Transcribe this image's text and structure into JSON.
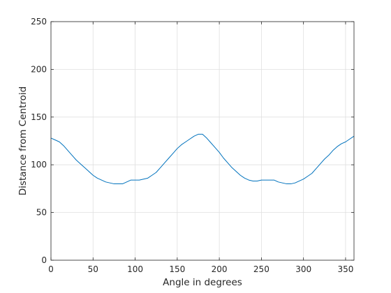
{
  "chart_data": {
    "type": "line",
    "title": "",
    "xlabel": "Angle in degrees",
    "ylabel": "Distance from Centroid",
    "xlim": [
      0,
      360
    ],
    "ylim": [
      0,
      250
    ],
    "xticks": [
      0,
      50,
      100,
      150,
      200,
      250,
      300,
      350
    ],
    "yticks": [
      0,
      50,
      100,
      150,
      200,
      250
    ],
    "grid": true,
    "legend": "none",
    "series": [
      {
        "color": "#0072BD",
        "x": [
          0,
          5,
          10,
          15,
          20,
          25,
          30,
          35,
          40,
          45,
          50,
          55,
          60,
          65,
          70,
          75,
          80,
          85,
          90,
          95,
          100,
          105,
          110,
          115,
          120,
          125,
          130,
          135,
          140,
          145,
          150,
          155,
          160,
          165,
          170,
          175,
          180,
          185,
          190,
          195,
          200,
          205,
          210,
          215,
          220,
          225,
          230,
          235,
          240,
          245,
          250,
          255,
          260,
          265,
          270,
          275,
          280,
          285,
          290,
          295,
          300,
          305,
          310,
          315,
          320,
          325,
          330,
          335,
          340,
          345,
          350,
          355,
          360
        ],
        "y": [
          128,
          126,
          124,
          120,
          115,
          110,
          105,
          101,
          97,
          93,
          89,
          86,
          84,
          82,
          81,
          80,
          80,
          80,
          82,
          84,
          84,
          84,
          85,
          86,
          89,
          92,
          97,
          102,
          107,
          112,
          117,
          121,
          124,
          127,
          130,
          132,
          132,
          128,
          123,
          118,
          113,
          107,
          102,
          97,
          93,
          89,
          86,
          84,
          83,
          83,
          84,
          84,
          84,
          84,
          82,
          81,
          80,
          80,
          81,
          83,
          85,
          88,
          91,
          96,
          101,
          106,
          110,
          115,
          119,
          122,
          124,
          127,
          130
        ]
      }
    ]
  }
}
